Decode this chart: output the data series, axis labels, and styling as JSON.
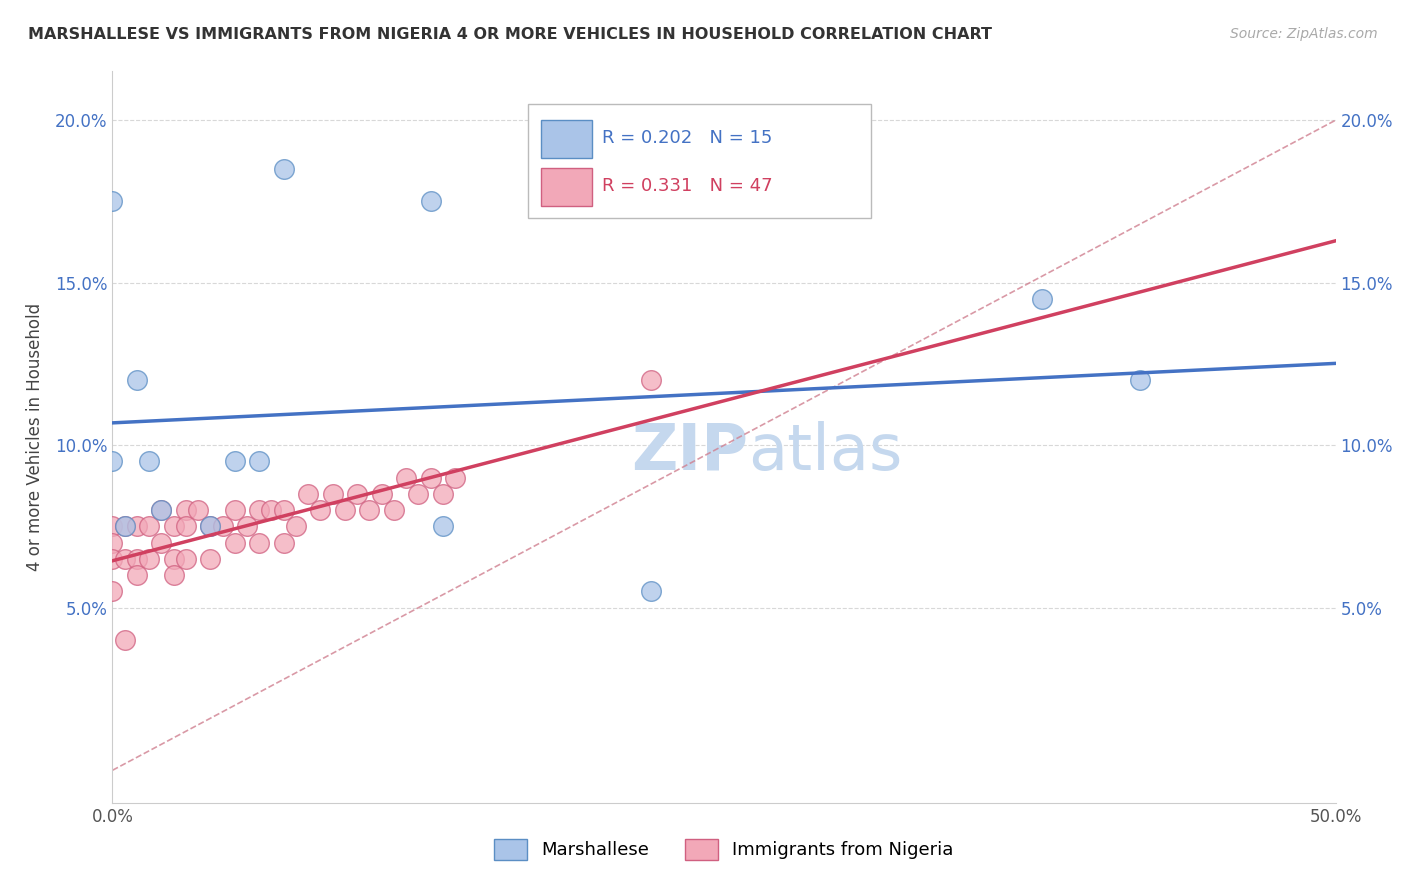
{
  "title": "MARSHALLESE VS IMMIGRANTS FROM NIGERIA 4 OR MORE VEHICLES IN HOUSEHOLD CORRELATION CHART",
  "source": "Source: ZipAtlas.com",
  "ylabel": "4 or more Vehicles in Household",
  "xlim": [
    0.0,
    0.5
  ],
  "ylim": [
    -0.01,
    0.215
  ],
  "xticks": [
    0.0,
    0.1,
    0.2,
    0.3,
    0.4,
    0.5
  ],
  "xticklabels": [
    "0.0%",
    "",
    "",
    "",
    "",
    "50.0%"
  ],
  "yticks": [
    0.0,
    0.05,
    0.1,
    0.15,
    0.2
  ],
  "left_yticklabels": [
    "",
    "5.0%",
    "10.0%",
    "15.0%",
    "20.0%"
  ],
  "right_yticklabels": [
    "",
    "5.0%",
    "10.0%",
    "15.0%",
    "20.0%"
  ],
  "marshallese_R": "0.202",
  "marshallese_N": "15",
  "nigeria_R": "0.331",
  "nigeria_N": "47",
  "marshallese_color": "#aac4e8",
  "nigeria_color": "#f2a8b8",
  "marshallese_edge_color": "#5b8ec4",
  "nigeria_edge_color": "#d06080",
  "marshallese_line_color": "#4472c4",
  "nigeria_line_color": "#d04060",
  "diag_dash_color": "#d08090",
  "grid_color": "#d8d8d8",
  "watermark_color": "#c5d8ee",
  "marshallese_x": [
    0.0,
    0.07,
    0.13,
    0.0,
    0.01,
    0.015,
    0.02,
    0.04,
    0.05,
    0.06,
    0.38,
    0.22,
    0.005,
    0.135,
    0.42
  ],
  "marshallese_y": [
    0.175,
    0.185,
    0.175,
    0.095,
    0.12,
    0.095,
    0.08,
    0.075,
    0.095,
    0.095,
    0.145,
    0.055,
    0.075,
    0.075,
    0.12
  ],
  "nigeria_x": [
    0.0,
    0.0,
    0.0,
    0.0,
    0.005,
    0.005,
    0.01,
    0.01,
    0.01,
    0.015,
    0.015,
    0.02,
    0.02,
    0.025,
    0.025,
    0.025,
    0.03,
    0.03,
    0.03,
    0.035,
    0.04,
    0.04,
    0.045,
    0.05,
    0.05,
    0.055,
    0.06,
    0.06,
    0.065,
    0.07,
    0.07,
    0.075,
    0.08,
    0.085,
    0.09,
    0.095,
    0.1,
    0.105,
    0.11,
    0.115,
    0.12,
    0.125,
    0.13,
    0.135,
    0.14,
    0.005,
    0.22
  ],
  "nigeria_y": [
    0.075,
    0.07,
    0.065,
    0.055,
    0.075,
    0.065,
    0.075,
    0.065,
    0.06,
    0.075,
    0.065,
    0.08,
    0.07,
    0.075,
    0.065,
    0.06,
    0.08,
    0.075,
    0.065,
    0.08,
    0.075,
    0.065,
    0.075,
    0.08,
    0.07,
    0.075,
    0.08,
    0.07,
    0.08,
    0.08,
    0.07,
    0.075,
    0.085,
    0.08,
    0.085,
    0.08,
    0.085,
    0.08,
    0.085,
    0.08,
    0.09,
    0.085,
    0.09,
    0.085,
    0.09,
    0.04,
    0.12
  ]
}
